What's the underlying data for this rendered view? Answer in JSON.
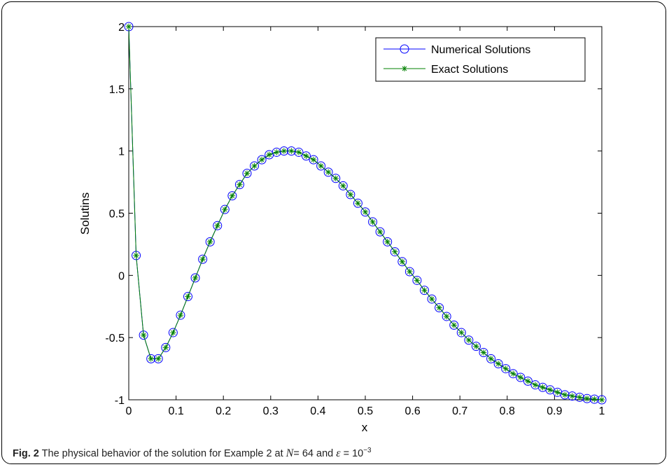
{
  "caption": {
    "fig_label": "Fig. 2",
    "text": "The physical behavior of the solution for Example 2 at",
    "n_symbol": "N",
    "n_value": "= 64",
    "and": "and",
    "eps_symbol": "ε",
    "eps_eq": "= 10",
    "eps_exp": "−3"
  },
  "chart_data": {
    "type": "line",
    "title": "",
    "xlabel": "x",
    "ylabel": "Solutins",
    "xlim": [
      0,
      1
    ],
    "ylim": [
      -1,
      2
    ],
    "xticks": [
      "0",
      "0.1",
      "0.2",
      "0.3",
      "0.4",
      "0.5",
      "0.6",
      "0.7",
      "0.8",
      "0.9",
      "1"
    ],
    "yticks": [
      "-1",
      "-0.5",
      "0",
      "0.5",
      "1",
      "1.5",
      "2"
    ],
    "grid": false,
    "legend_position": "top-right",
    "x": [
      0,
      0.015625,
      0.03125,
      0.046875,
      0.0625,
      0.078125,
      0.09375,
      0.109375,
      0.125,
      0.140625,
      0.15625,
      0.171875,
      0.1875,
      0.203125,
      0.21875,
      0.234375,
      0.25,
      0.265625,
      0.28125,
      0.296875,
      0.3125,
      0.328125,
      0.34375,
      0.359375,
      0.375,
      0.390625,
      0.40625,
      0.421875,
      0.4375,
      0.453125,
      0.46875,
      0.484375,
      0.5,
      0.515625,
      0.53125,
      0.546875,
      0.5625,
      0.578125,
      0.59375,
      0.609375,
      0.625,
      0.640625,
      0.65625,
      0.671875,
      0.6875,
      0.703125,
      0.71875,
      0.734375,
      0.75,
      0.765625,
      0.78125,
      0.796875,
      0.8125,
      0.828125,
      0.84375,
      0.859375,
      0.875,
      0.890625,
      0.90625,
      0.921875,
      0.9375,
      0.953125,
      0.96875,
      0.984375,
      1
    ],
    "series": [
      {
        "name": "Numerical Solutions",
        "color": "#0000ff",
        "marker": "circle",
        "values": [
          2.0,
          0.16,
          -0.48,
          -0.67,
          -0.67,
          -0.58,
          -0.46,
          -0.32,
          -0.17,
          -0.02,
          0.13,
          0.27,
          0.4,
          0.53,
          0.64,
          0.73,
          0.82,
          0.88,
          0.93,
          0.97,
          0.99,
          1.0,
          1.0,
          0.99,
          0.96,
          0.93,
          0.88,
          0.83,
          0.78,
          0.72,
          0.65,
          0.58,
          0.51,
          0.43,
          0.35,
          0.27,
          0.19,
          0.11,
          0.03,
          -0.04,
          -0.12,
          -0.19,
          -0.26,
          -0.33,
          -0.4,
          -0.46,
          -0.52,
          -0.57,
          -0.62,
          -0.67,
          -0.71,
          -0.75,
          -0.79,
          -0.82,
          -0.85,
          -0.88,
          -0.9,
          -0.92,
          -0.94,
          -0.96,
          -0.97,
          -0.98,
          -0.99,
          -0.995,
          -1.0
        ]
      },
      {
        "name": "Exact Solutions",
        "color": "#008000",
        "marker": "asterisk",
        "values": [
          2.0,
          0.16,
          -0.48,
          -0.67,
          -0.67,
          -0.58,
          -0.46,
          -0.32,
          -0.17,
          -0.02,
          0.13,
          0.27,
          0.4,
          0.53,
          0.64,
          0.73,
          0.82,
          0.88,
          0.93,
          0.97,
          0.99,
          1.0,
          1.0,
          0.99,
          0.96,
          0.93,
          0.88,
          0.83,
          0.78,
          0.72,
          0.65,
          0.58,
          0.51,
          0.43,
          0.35,
          0.27,
          0.19,
          0.11,
          0.03,
          -0.04,
          -0.12,
          -0.19,
          -0.26,
          -0.33,
          -0.4,
          -0.46,
          -0.52,
          -0.57,
          -0.62,
          -0.67,
          -0.71,
          -0.75,
          -0.79,
          -0.82,
          -0.85,
          -0.88,
          -0.9,
          -0.92,
          -0.94,
          -0.96,
          -0.97,
          -0.98,
          -0.99,
          -0.995,
          -1.0
        ]
      }
    ]
  }
}
